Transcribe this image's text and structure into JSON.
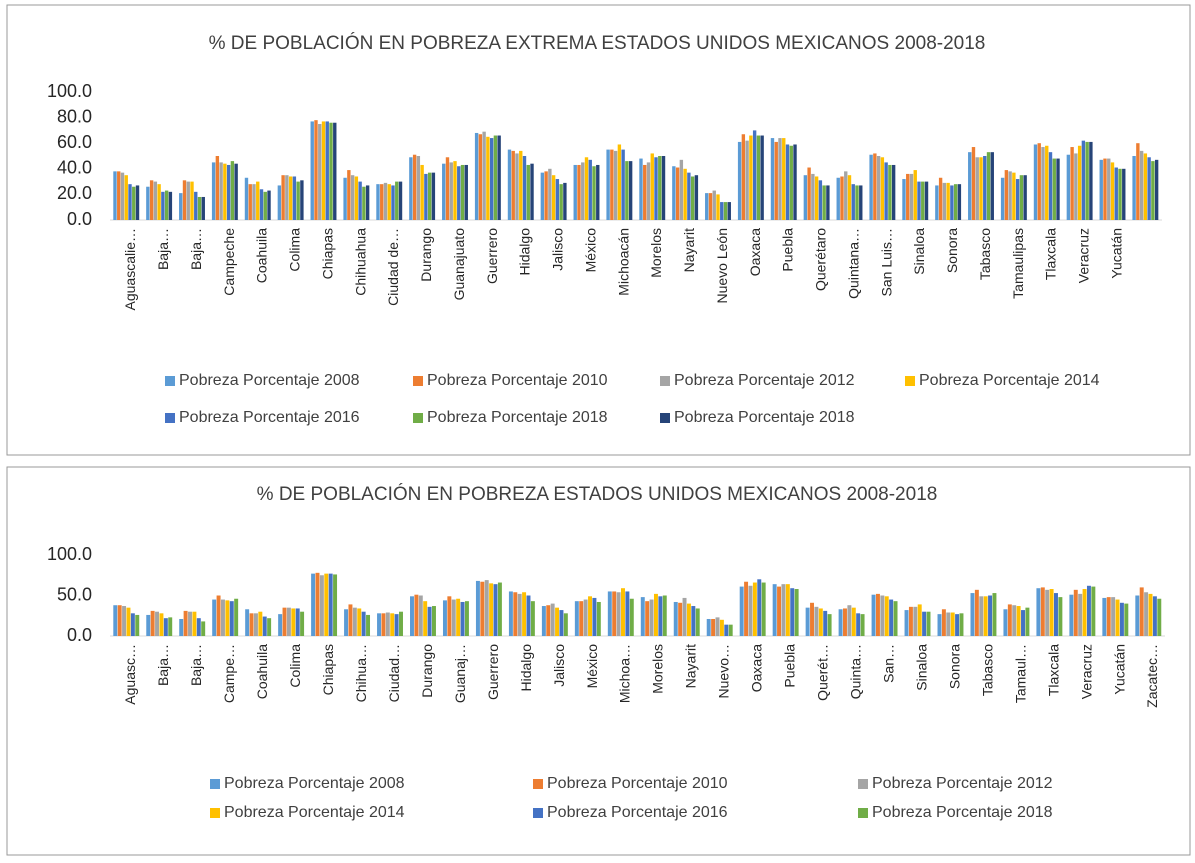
{
  "chart_data": [
    {
      "type": "bar",
      "title": "% DE POBLACIÓN EN POBREZA EXTREMA ESTADOS UNIDOS MEXICANOS 2008-2018",
      "categories": [
        "Aguascalie…",
        "Baja…",
        "Baja…",
        "Campeche",
        "Coahuila",
        "Colima",
        "Chiapas",
        "Chihuahua",
        "Ciudad de…",
        "Durango",
        "Guanajuato",
        "Guerrero",
        "Hidalgo",
        "Jalisco",
        "México",
        "Michoacán",
        "Morelos",
        "Nayarit",
        "Nuevo León",
        "Oaxaca",
        "Puebla",
        "Querétaro",
        "Quintana…",
        "San Luis…",
        "Sinaloa",
        "Sonora",
        "Tabasco",
        "Tamaulipas",
        "Tlaxcala",
        "Veracruz",
        "Yucatán",
        null
      ],
      "series": [
        {
          "name": "Pobreza Porcentaje 2008",
          "color": "#5b9bd5",
          "values": [
            38,
            26,
            21,
            45,
            33,
            27,
            77,
            33,
            28,
            49,
            44,
            68,
            55,
            37,
            43,
            55,
            48,
            42,
            21,
            61,
            64,
            35,
            33,
            51,
            32,
            27,
            53,
            33,
            59,
            51,
            47,
            50
          ]
        },
        {
          "name": "Pobreza Porcentaje 2010",
          "color": "#ed7d31",
          "values": [
            38,
            31,
            31,
            50,
            28,
            35,
            78,
            39,
            28,
            51,
            49,
            67,
            54,
            38,
            43,
            55,
            43,
            41,
            21,
            67,
            61,
            41,
            34,
            52,
            36,
            33,
            57,
            39,
            60,
            57,
            48,
            60
          ]
        },
        {
          "name": "Pobreza Porcentaje 2012",
          "color": "#a5a5a5",
          "values": [
            37,
            30,
            30,
            45,
            28,
            35,
            75,
            35,
            29,
            50,
            45,
            69,
            52,
            40,
            45,
            54,
            45,
            47,
            23,
            62,
            64,
            36,
            38,
            50,
            36,
            29,
            49,
            38,
            57,
            52,
            48,
            54
          ]
        },
        {
          "name": "Pobreza Porcentaje 2014",
          "color": "#ffc000",
          "values": [
            35,
            28,
            30,
            44,
            30,
            34,
            77,
            34,
            28,
            43,
            46,
            65,
            54,
            35,
            49,
            59,
            52,
            40,
            20,
            66,
            64,
            34,
            35,
            49,
            39,
            29,
            49,
            37,
            58,
            58,
            45,
            52
          ]
        },
        {
          "name": "Pobreza Porcentaje 2016",
          "color": "#4472c4",
          "values": [
            28,
            22,
            22,
            43,
            24,
            34,
            77,
            30,
            27,
            36,
            42,
            64,
            50,
            32,
            47,
            55,
            49,
            37,
            14,
            70,
            59,
            31,
            28,
            45,
            30,
            27,
            50,
            32,
            53,
            62,
            41,
            49
          ]
        },
        {
          "name": "Pobreza Porcentaje 2018",
          "color": "#70ad47",
          "values": [
            26,
            23,
            18,
            46,
            22,
            30,
            76,
            26,
            30,
            37,
            43,
            66,
            43,
            28,
            42,
            46,
            50,
            34,
            14,
            66,
            58,
            27,
            27,
            43,
            30,
            28,
            53,
            35,
            48,
            61,
            40,
            46
          ]
        },
        {
          "name": "Pobreza  Porcentaje 2018",
          "color": "#264478",
          "values": [
            27,
            22,
            18,
            44,
            23,
            31,
            76,
            27,
            30,
            37,
            43,
            66,
            44,
            29,
            43,
            46,
            50,
            35,
            14,
            66,
            59,
            27,
            27,
            43,
            30,
            28,
            53,
            35,
            48,
            61,
            40,
            47
          ]
        }
      ],
      "ylim": [
        0,
        100
      ],
      "yticks": [
        {
          "value": 0,
          "label": "0.0"
        },
        {
          "value": 20,
          "label": "20.0"
        },
        {
          "value": 40,
          "label": "40.0"
        },
        {
          "value": 60,
          "label": "60.0"
        },
        {
          "value": 80,
          "label": "80.0"
        },
        {
          "value": 100,
          "label": "100.0"
        }
      ],
      "legend": "bottom"
    },
    {
      "type": "bar",
      "title": "% DE POBLACIÓN EN POBREZA  ESTADOS UNIDOS MEXICANOS 2008-2018",
      "categories": [
        "Aguasc…",
        "Baja…",
        "Baja…",
        "Campe…",
        "Coahuila",
        "Colima",
        "Chiapas",
        "Chihua…",
        "Ciudad…",
        "Durango",
        "Guanaj…",
        "Guerrero",
        "Hidalgo",
        "Jalisco",
        "México",
        "Michoa…",
        "Morelos",
        "Nayarit",
        "Nuevo…",
        "Oaxaca",
        "Puebla",
        "Querét…",
        "Quinta…",
        "San…",
        "Sinaloa",
        "Sonora",
        "Tabasco",
        "Tamaul…",
        "Tlaxcala",
        "Veracruz",
        "Yucatán",
        "Zacatec…"
      ],
      "series": [
        {
          "name": "Pobreza Porcentaje 2008",
          "color": "#5b9bd5",
          "values": [
            38,
            26,
            21,
            45,
            33,
            27,
            77,
            33,
            28,
            49,
            44,
            68,
            55,
            37,
            43,
            55,
            48,
            42,
            21,
            61,
            64,
            35,
            33,
            51,
            32,
            27,
            53,
            33,
            59,
            51,
            47,
            50
          ]
        },
        {
          "name": "Pobreza Porcentaje 2010",
          "color": "#ed7d31",
          "values": [
            38,
            31,
            31,
            50,
            28,
            35,
            78,
            39,
            28,
            51,
            49,
            67,
            54,
            38,
            43,
            55,
            43,
            41,
            21,
            67,
            61,
            41,
            34,
            52,
            36,
            33,
            57,
            39,
            60,
            57,
            48,
            60
          ]
        },
        {
          "name": "Pobreza Porcentaje 2012",
          "color": "#a5a5a5",
          "values": [
            37,
            30,
            30,
            45,
            28,
            35,
            75,
            35,
            29,
            50,
            45,
            69,
            52,
            40,
            45,
            54,
            45,
            47,
            23,
            62,
            64,
            36,
            38,
            50,
            36,
            29,
            49,
            38,
            57,
            52,
            48,
            54
          ]
        },
        {
          "name": "Pobreza Porcentaje 2014",
          "color": "#ffc000",
          "values": [
            35,
            28,
            30,
            44,
            30,
            34,
            77,
            34,
            28,
            43,
            46,
            65,
            54,
            35,
            49,
            59,
            52,
            40,
            20,
            66,
            64,
            34,
            35,
            49,
            39,
            29,
            49,
            37,
            58,
            58,
            45,
            52
          ]
        },
        {
          "name": "Pobreza Porcentaje 2016",
          "color": "#4472c4",
          "values": [
            28,
            22,
            22,
            43,
            24,
            34,
            77,
            30,
            27,
            36,
            42,
            64,
            50,
            32,
            47,
            55,
            49,
            37,
            14,
            70,
            59,
            31,
            28,
            45,
            30,
            27,
            50,
            32,
            53,
            62,
            41,
            49
          ]
        },
        {
          "name": "Pobreza Porcentaje 2018",
          "color": "#70ad47",
          "values": [
            26,
            23,
            18,
            46,
            22,
            30,
            76,
            26,
            30,
            37,
            43,
            66,
            43,
            28,
            42,
            46,
            50,
            34,
            14,
            66,
            58,
            27,
            27,
            43,
            30,
            28,
            53,
            35,
            48,
            61,
            40,
            46
          ]
        }
      ],
      "ylim": [
        0,
        100
      ],
      "yticks": [
        {
          "value": 0,
          "label": "0.0"
        },
        {
          "value": 50,
          "label": "50.0"
        },
        {
          "value": 100,
          "label": "100.0"
        }
      ],
      "legend": "bottom"
    }
  ]
}
